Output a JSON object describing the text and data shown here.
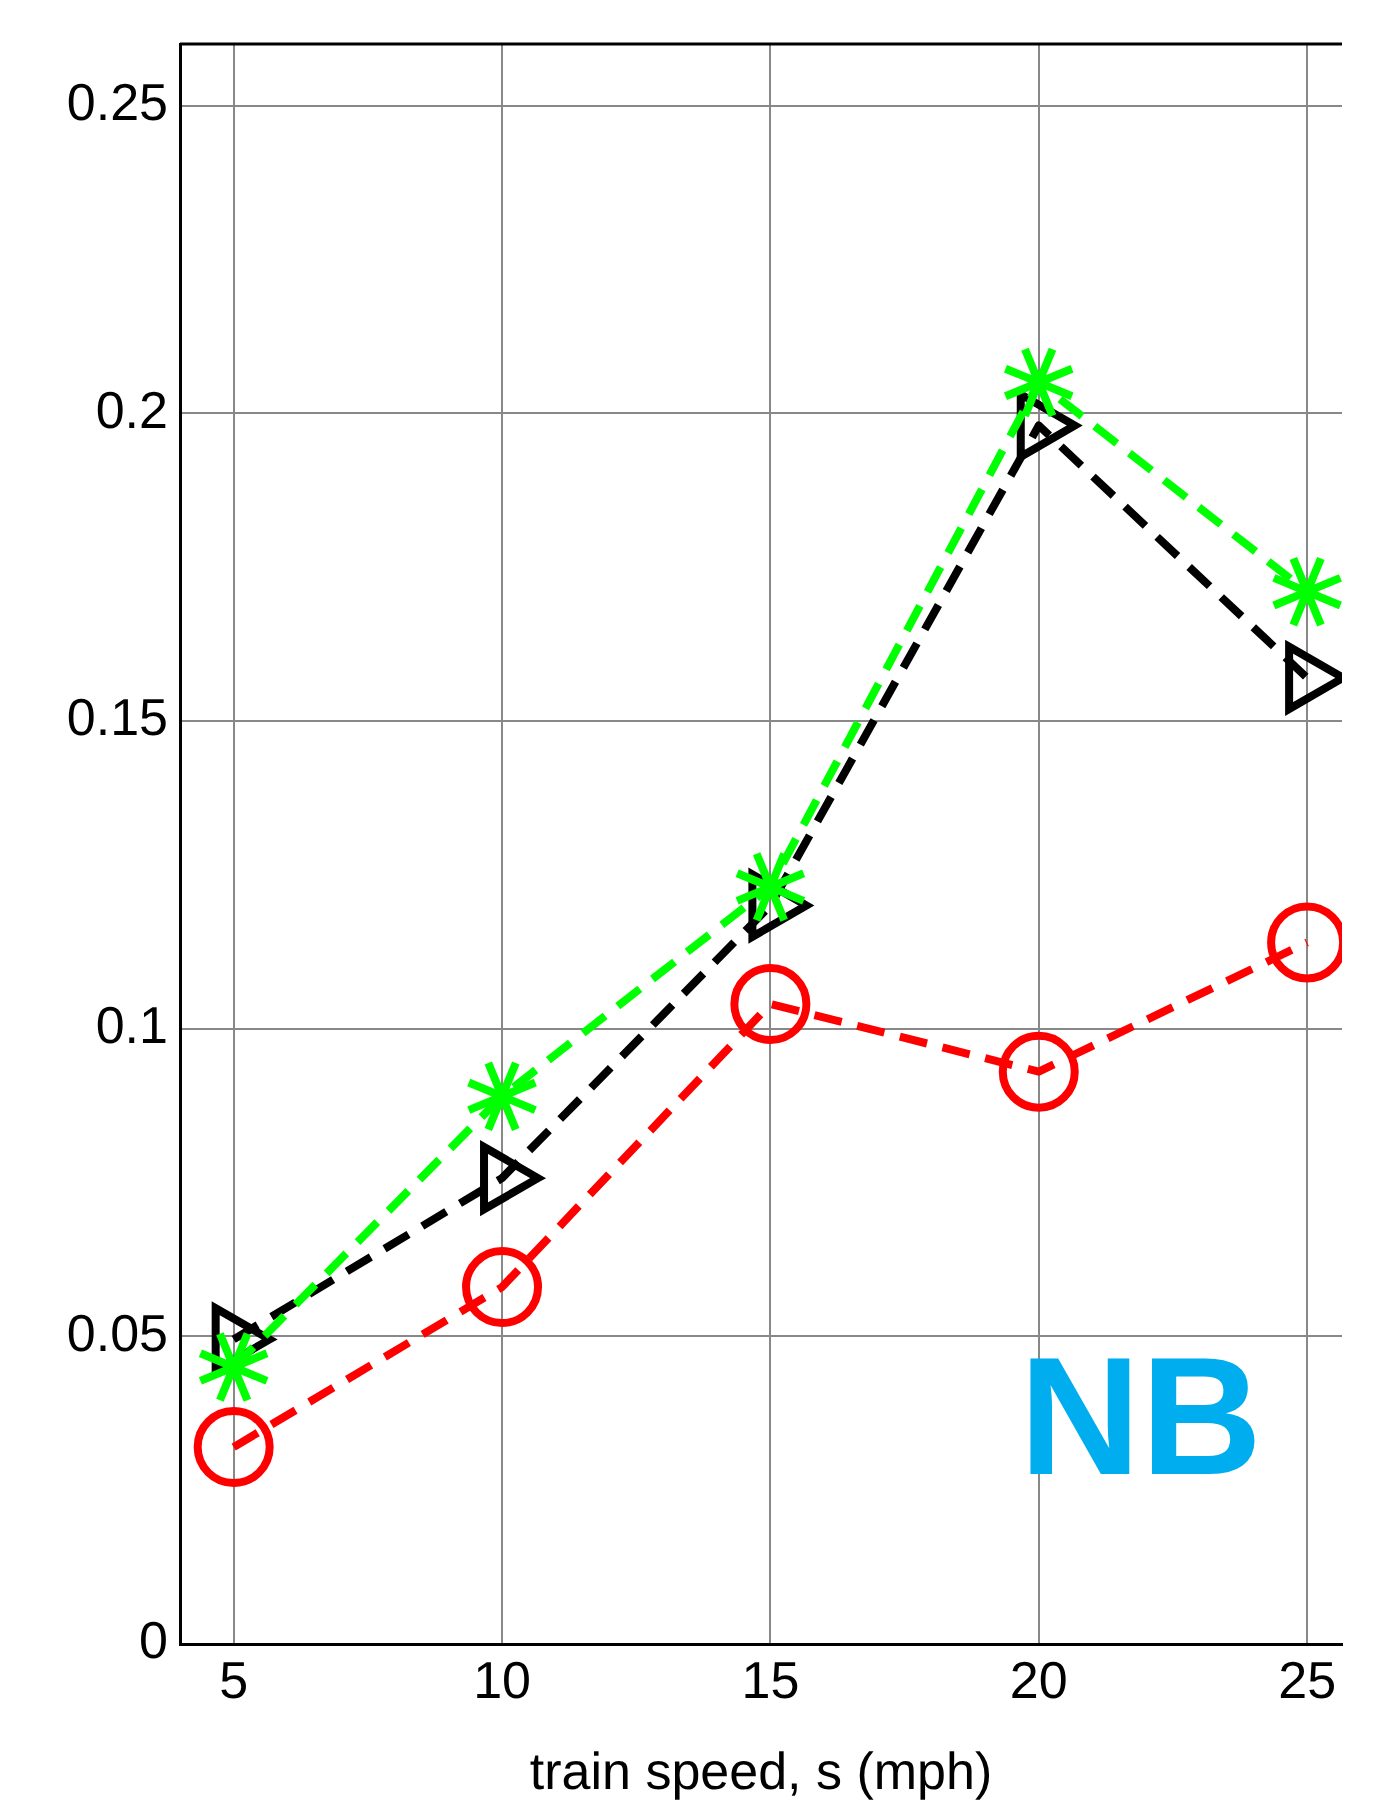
{
  "chart_data": {
    "type": "line",
    "xlabel": "train speed, s (mph)",
    "x": [
      5,
      10,
      15,
      20,
      25
    ],
    "xlim": [
      4,
      25.65
    ],
    "xticks": [
      5,
      10,
      15,
      20,
      25
    ],
    "ylim": [
      0,
      0.26
    ],
    "yticks": [
      0,
      0.05,
      0.1,
      0.15,
      0.2,
      0.25
    ],
    "grid": true,
    "line_style": "dashed",
    "legend": false,
    "series": [
      {
        "color": "#00ff00",
        "marker": "cross",
        "values": [
          0.045,
          0.089,
          0.123,
          0.205,
          0.171
        ]
      },
      {
        "color": "#000000",
        "marker": "triangle",
        "values": [
          0.0495,
          0.0757,
          0.12,
          0.198,
          0.157
        ]
      },
      {
        "color": "#ff0000",
        "marker": "circle",
        "values": [
          0.032,
          0.058,
          0.104,
          0.093,
          0.114
        ]
      }
    ],
    "annotations": [
      "NB"
    ]
  }
}
